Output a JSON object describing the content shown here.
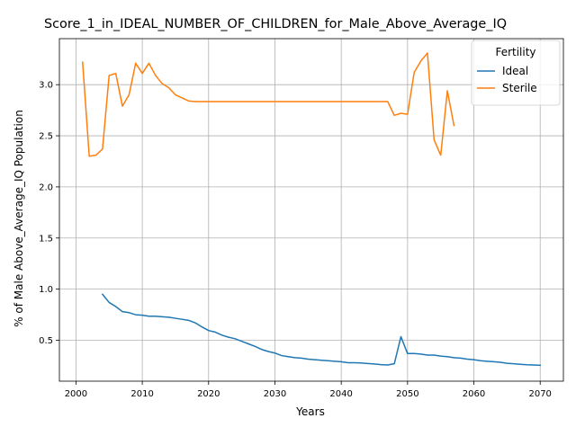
{
  "chart_data": {
    "type": "line",
    "title": "Score_1_in_IDEAL_NUMBER_OF_CHILDREN_for_Male_Above_Average_IQ",
    "xlabel": "Years",
    "ylabel": "% of Male Above_Average_IQ Population",
    "xlim": [
      1997.5,
      2073.5
    ],
    "ylim": [
      0.1,
      3.45
    ],
    "xticks": [
      2000,
      2010,
      2020,
      2030,
      2040,
      2050,
      2060,
      2070
    ],
    "yticks": [
      0.5,
      1.0,
      1.5,
      2.0,
      2.5,
      3.0
    ],
    "xtick_labels": [
      "2000",
      "2010",
      "2020",
      "2030",
      "2040",
      "2050",
      "2060",
      "2070"
    ],
    "ytick_labels": [
      "0.5",
      "1.0",
      "1.5",
      "2.0",
      "2.5",
      "3.0"
    ],
    "grid": true,
    "legend": {
      "title": "Fertility",
      "placement": "top-right"
    },
    "series": [
      {
        "name": "Ideal",
        "color": "#1f77b4",
        "x": [
          2004,
          2005,
          2006,
          2007,
          2008,
          2009,
          2010,
          2011,
          2012,
          2013,
          2014,
          2015,
          2016,
          2017,
          2018,
          2019,
          2020,
          2021,
          2022,
          2023,
          2024,
          2025,
          2026,
          2027,
          2028,
          2029,
          2030,
          2031,
          2032,
          2033,
          2034,
          2035,
          2036,
          2037,
          2038,
          2039,
          2040,
          2041,
          2042,
          2043,
          2044,
          2045,
          2046,
          2047,
          2048,
          2049,
          2050,
          2051,
          2052,
          2053,
          2054,
          2055,
          2056,
          2057,
          2058,
          2059,
          2060,
          2061,
          2062,
          2063,
          2064,
          2065,
          2066,
          2067,
          2068,
          2069,
          2070
        ],
        "values": [
          0.95,
          0.87,
          0.83,
          0.78,
          0.77,
          0.75,
          0.745,
          0.735,
          0.735,
          0.73,
          0.725,
          0.715,
          0.705,
          0.695,
          0.67,
          0.63,
          0.595,
          0.58,
          0.55,
          0.53,
          0.515,
          0.49,
          0.465,
          0.44,
          0.41,
          0.39,
          0.375,
          0.35,
          0.34,
          0.33,
          0.325,
          0.315,
          0.31,
          0.305,
          0.3,
          0.295,
          0.29,
          0.28,
          0.28,
          0.278,
          0.273,
          0.268,
          0.262,
          0.258,
          0.27,
          0.535,
          0.37,
          0.37,
          0.365,
          0.355,
          0.355,
          0.345,
          0.34,
          0.33,
          0.325,
          0.315,
          0.31,
          0.3,
          0.295,
          0.29,
          0.285,
          0.275,
          0.27,
          0.265,
          0.26,
          0.258,
          0.255
        ]
      },
      {
        "name": "Sterile",
        "color": "#ff7f0e",
        "x": [
          2001,
          2002,
          2003,
          2004,
          2005,
          2006,
          2007,
          2008,
          2009,
          2010,
          2011,
          2012,
          2013,
          2014,
          2015,
          2016,
          2017,
          2018,
          2019,
          2020,
          2021,
          2022,
          2023,
          2024,
          2025,
          2026,
          2027,
          2028,
          2029,
          2030,
          2031,
          2032,
          2033,
          2034,
          2035,
          2036,
          2037,
          2038,
          2039,
          2040,
          2041,
          2042,
          2043,
          2044,
          2045,
          2046,
          2047,
          2048,
          2049,
          2050,
          2051,
          2052,
          2053,
          2054,
          2055,
          2056,
          2057
        ],
        "values": [
          3.22,
          2.3,
          2.31,
          2.37,
          3.09,
          3.11,
          2.79,
          2.9,
          3.21,
          3.11,
          3.21,
          3.09,
          3.01,
          2.97,
          2.9,
          2.87,
          2.84,
          2.835,
          2.835,
          2.835,
          2.835,
          2.835,
          2.835,
          2.835,
          2.835,
          2.835,
          2.835,
          2.835,
          2.835,
          2.835,
          2.835,
          2.835,
          2.835,
          2.835,
          2.835,
          2.835,
          2.835,
          2.835,
          2.835,
          2.835,
          2.835,
          2.835,
          2.835,
          2.835,
          2.835,
          2.835,
          2.835,
          2.7,
          2.72,
          2.71,
          3.12,
          3.23,
          3.31,
          2.46,
          2.31,
          2.94,
          2.6
        ]
      }
    ]
  }
}
